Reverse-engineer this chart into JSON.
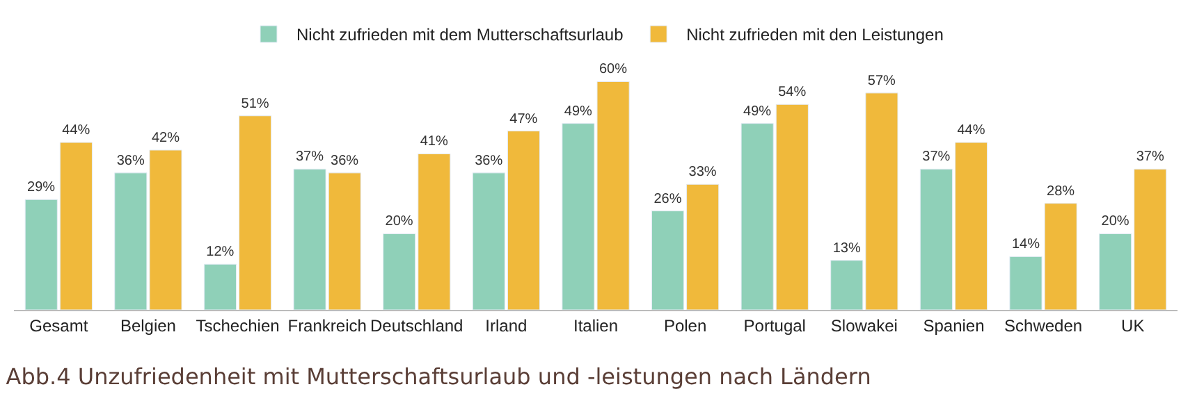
{
  "chart_data": {
    "type": "bar",
    "title": "Abb.4 Unzufriedenheit mit Mutterschaftsurlaub und -leistungen nach Ländern",
    "categories": [
      "Gesamt",
      "Belgien",
      "Tschechien",
      "Frankreich",
      "Deutschland",
      "Irland",
      "Italien",
      "Polen",
      "Portugal",
      "Slowakei",
      "Spanien",
      "Schweden",
      "UK"
    ],
    "series": [
      {
        "name": "Nicht zufrieden mit dem Mutterschaftsurlaub",
        "color": "#8fd0b8",
        "values": [
          29,
          36,
          12,
          37,
          20,
          36,
          49,
          26,
          49,
          13,
          37,
          14,
          20
        ],
        "value_labels": [
          "29%",
          "36%",
          "12%",
          "37%",
          "20%",
          "36%",
          "49%",
          "26%",
          "49%",
          "13%",
          "37%",
          "14%",
          "20%"
        ]
      },
      {
        "name": "Nicht zufrieden mit den Leistungen",
        "color": "#f0b93b",
        "values": [
          44,
          42,
          51,
          36,
          41,
          47,
          60,
          33,
          54,
          57,
          44,
          28,
          37
        ],
        "value_labels": [
          "44%",
          "42%",
          "51%",
          "36%",
          "41%",
          "47%",
          "60%",
          "33%",
          "54%",
          "57%",
          "44%",
          "28%",
          "37%"
        ]
      }
    ],
    "legend": "top"
  }
}
